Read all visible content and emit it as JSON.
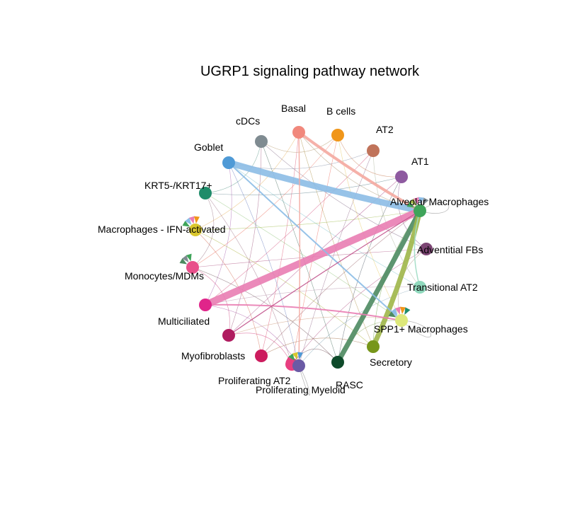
{
  "title": "UGRP1 signaling pathway network",
  "chart_data": {
    "type": "network",
    "layout": "circle",
    "title": "UGRP1 signaling pathway network",
    "nodes": [
      {
        "id": "alv",
        "label": "Alveolar Macrophages",
        "color": "#3fa45a"
      },
      {
        "id": "at1",
        "label": "AT1",
        "color": "#8e5aa0"
      },
      {
        "id": "at2",
        "label": "AT2",
        "color": "#c0735a"
      },
      {
        "id": "bc",
        "label": "B cells",
        "color": "#f0961a"
      },
      {
        "id": "bas",
        "label": "Basal",
        "color": "#f1887c"
      },
      {
        "id": "cdc",
        "label": "cDCs",
        "color": "#7f8b91"
      },
      {
        "id": "gob",
        "label": "Goblet",
        "color": "#4f9ad6"
      },
      {
        "id": "krt",
        "label": "KRT5-/KRT17+",
        "color": "#1f8c6a"
      },
      {
        "id": "ifn",
        "label": "Macrophages - IFN-activated",
        "color": "#d9c72e"
      },
      {
        "id": "mono",
        "label": "Monocytes/MDMs",
        "color": "#e84f8a"
      },
      {
        "id": "mult",
        "label": "Multiciliated",
        "color": "#e0258a"
      },
      {
        "id": "myo",
        "label": "",
        "color": "#b01c60"
      },
      {
        "id": "myof",
        "label": "Myofibroblasts",
        "color": "#cc1c5e"
      },
      {
        "id": "prat2",
        "label": "Proliferating AT2",
        "color": "#e83e80"
      },
      {
        "id": "prmy",
        "label": "Proliferating Myeloid",
        "color": "#6a5aa5"
      },
      {
        "id": "rasc",
        "label": "RASC",
        "color": "#0e4a2a"
      },
      {
        "id": "sec",
        "label": "Secretory",
        "color": "#77961a"
      },
      {
        "id": "spp1",
        "label": "SPP1+ Macrophages",
        "color": "#dde87a"
      },
      {
        "id": "tat2",
        "label": "Transitional AT2",
        "color": "#8fd9bd"
      },
      {
        "id": "adv",
        "label": "Adventitial FBs",
        "color": "#7c4573"
      }
    ],
    "major_edges": [
      {
        "from": "gob",
        "to": "alv",
        "weight": 9,
        "color": "#8cbde6"
      },
      {
        "from": "mult",
        "to": "alv",
        "weight": 10,
        "color": "#e97db3"
      },
      {
        "from": "bas",
        "to": "alv",
        "weight": 4,
        "color": "#f4a9a0"
      },
      {
        "from": "rasc",
        "to": "alv",
        "weight": 7,
        "color": "#4d8a60"
      },
      {
        "from": "sec",
        "to": "alv",
        "weight": 7,
        "color": "#9fb649"
      },
      {
        "from": "gob",
        "to": "spp1",
        "weight": 2,
        "color": "#8cbde6"
      },
      {
        "from": "mult",
        "to": "spp1",
        "weight": 2,
        "color": "#e97db3"
      },
      {
        "from": "bas",
        "to": "prmy",
        "weight": 1.5,
        "color": "#f4a9a0"
      },
      {
        "from": "myo",
        "to": "alv",
        "weight": 1.2,
        "color": "#c05089"
      },
      {
        "from": "tat2",
        "to": "alv",
        "weight": 1.5,
        "color": "#9fdcc3"
      }
    ]
  }
}
